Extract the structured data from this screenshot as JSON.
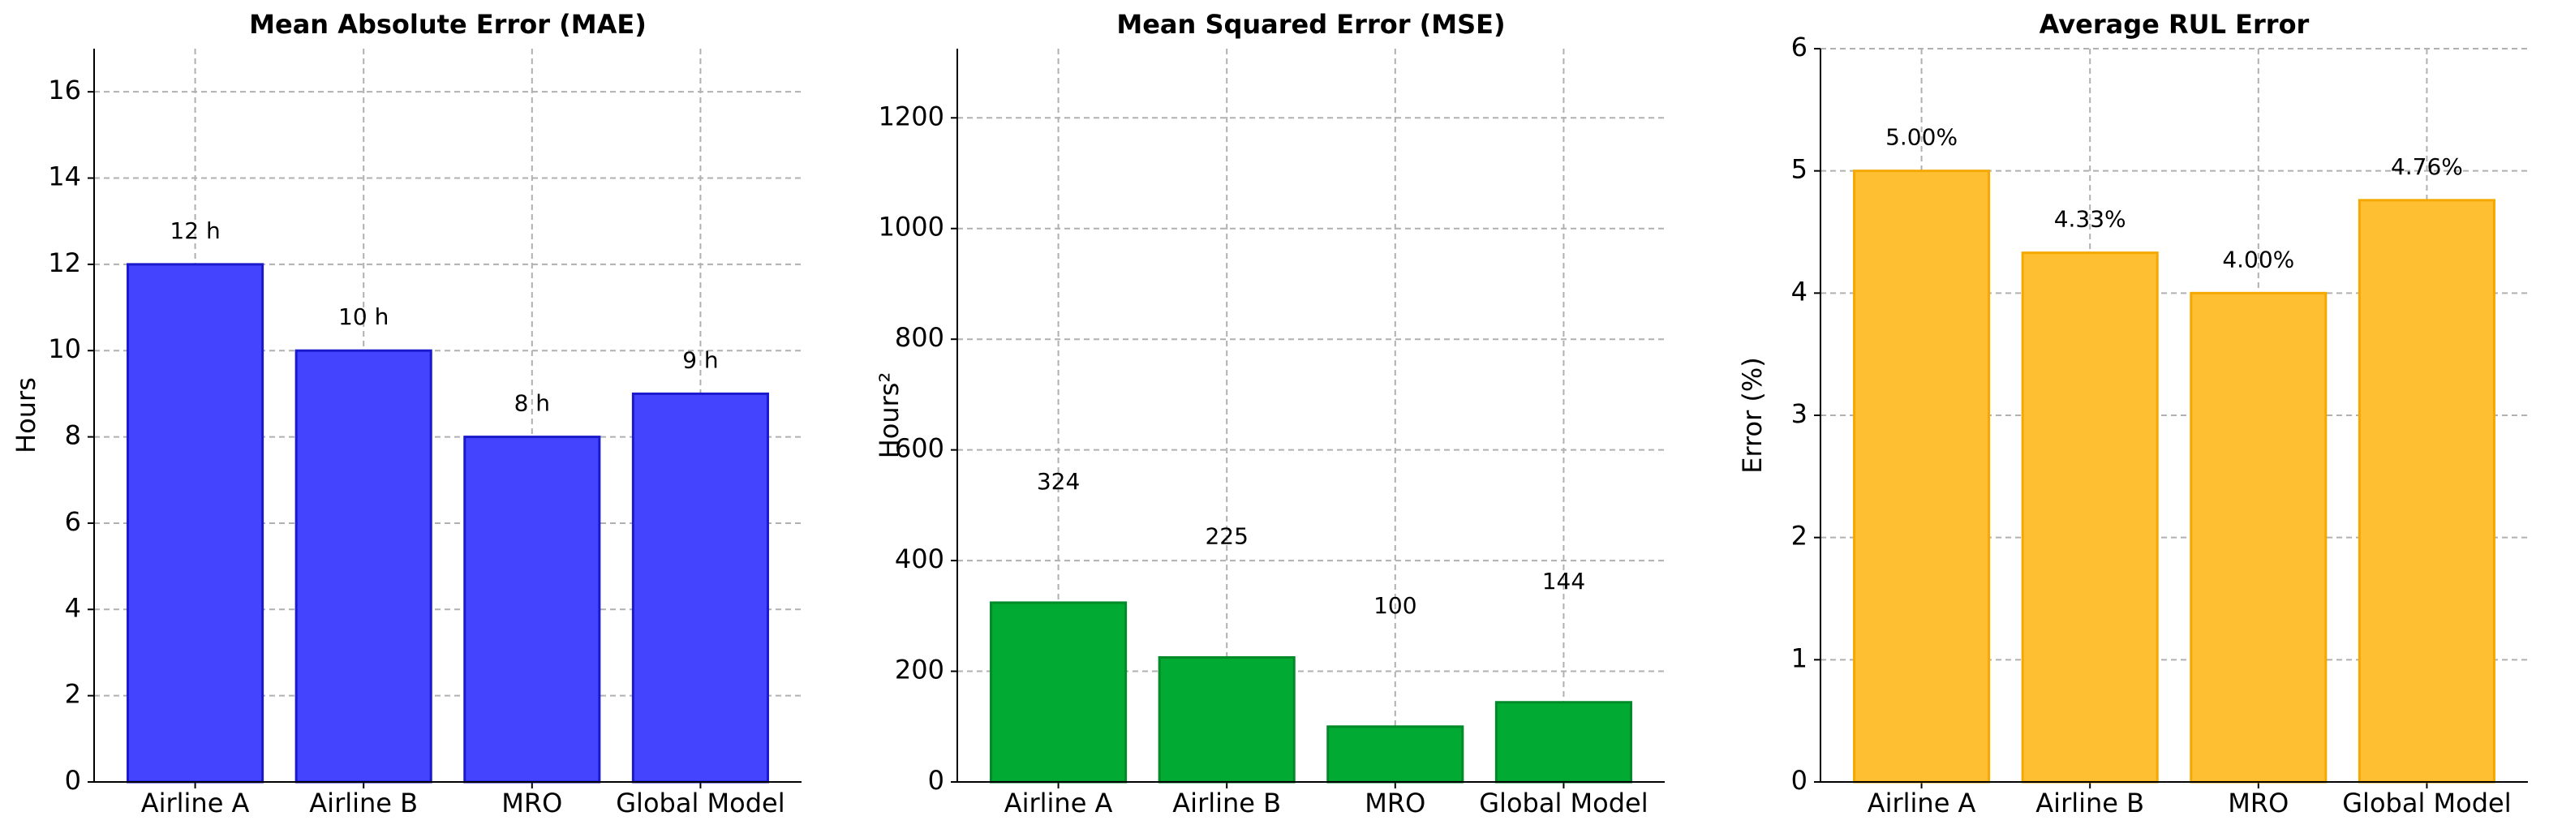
{
  "chart_data": [
    {
      "type": "bar",
      "title": "Mean Absolute Error (MAE)",
      "ylabel": "Hours",
      "categories": [
        "Airline A",
        "Airline B",
        "MRO",
        "Global Model"
      ],
      "values": [
        12,
        10,
        8,
        9
      ],
      "value_labels": [
        "12 h",
        "10 h",
        "8 h",
        "9 h"
      ],
      "color": "#4444ff",
      "edgecolor": "#1a1acc",
      "ylim": [
        0,
        17
      ],
      "yticks": [
        0,
        2,
        4,
        6,
        8,
        10,
        12,
        14,
        16
      ],
      "grid": true
    },
    {
      "type": "bar",
      "title": "Mean Squared Error (MSE)",
      "ylabel": "Hours²",
      "categories": [
        "Airline A",
        "Airline B",
        "MRO",
        "Global Model"
      ],
      "values": [
        324,
        225,
        100,
        144
      ],
      "color": "#00aa33",
      "edgecolor": "#008a28",
      "ylim": [
        0,
        1325
      ],
      "yticks": [
        0,
        200,
        400,
        600,
        800,
        1000,
        1200
      ],
      "grid": true
    },
    {
      "type": "bar",
      "title": "Average RUL Error",
      "ylabel": "Error (%)",
      "categories": [
        "Airline A",
        "Airline B",
        "MRO",
        "Global Model"
      ],
      "values": [
        5.0,
        4.33,
        4.0,
        4.76
      ],
      "value_labels": [
        "5.00%",
        "4.33%",
        "4.00%",
        "4.76%"
      ],
      "color": "#ffbf33",
      "edgecolor": "#f5a800",
      "ylim": [
        0,
        6
      ],
      "yticks": [
        0,
        1,
        2,
        3,
        4,
        5,
        6
      ],
      "grid": true
    }
  ]
}
